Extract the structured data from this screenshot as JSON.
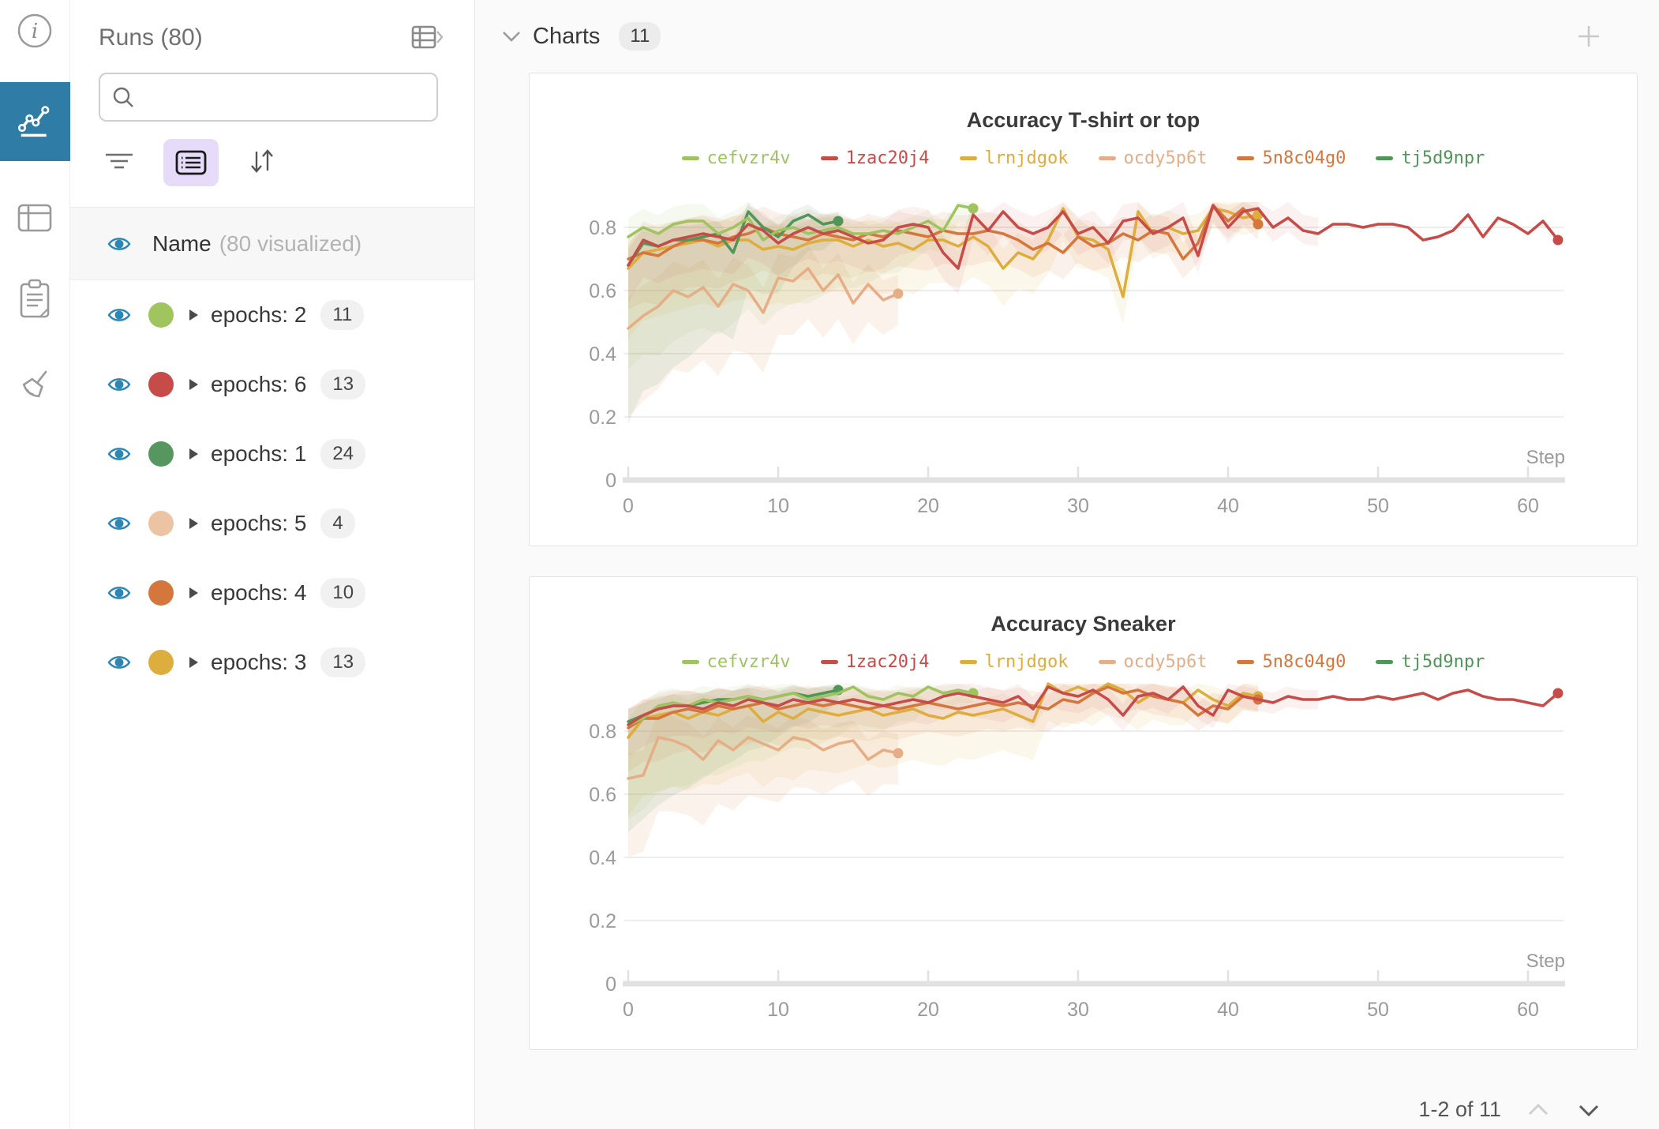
{
  "rail": {
    "items": [
      {
        "name": "info"
      },
      {
        "name": "charts",
        "selected": true
      },
      {
        "name": "table"
      },
      {
        "name": "notes"
      },
      {
        "name": "sweep"
      }
    ],
    "selected_bg": "#2f7ca6"
  },
  "sidebar": {
    "title": "Runs (80)",
    "search": {
      "placeholder": ""
    },
    "visualized_row": {
      "name": "Name",
      "sub": "(80 visualized)"
    },
    "runs": [
      {
        "label": "epochs: 2",
        "count": "11",
        "color": "#a0c45e"
      },
      {
        "label": "epochs: 6",
        "count": "13",
        "color": "#c74b48"
      },
      {
        "label": "epochs: 1",
        "count": "24",
        "color": "#55975e"
      },
      {
        "label": "epochs: 5",
        "count": "4",
        "color": "#ecc4a4"
      },
      {
        "label": "epochs: 4",
        "count": "10",
        "color": "#d5763c"
      },
      {
        "label": "epochs: 3",
        "count": "13",
        "color": "#ddad3d"
      }
    ]
  },
  "main": {
    "header": {
      "title": "Charts",
      "badge": "11"
    },
    "pagination": {
      "label": "1-2 of 11"
    }
  },
  "chart_data": [
    {
      "type": "line",
      "title": "Accuracy T-shirt or top",
      "xlabel": "Step",
      "ylabel": "",
      "xlim": [
        0,
        65
      ],
      "ylim": [
        0,
        1
      ],
      "xticks": [
        0,
        10,
        20,
        30,
        40,
        50,
        60
      ],
      "yticks": [
        0,
        0.2,
        0.4,
        0.6,
        0.8
      ],
      "grid": true,
      "legend_position": "top",
      "band_clamp": 0.88,
      "series": [
        {
          "name": "cefvzr4v",
          "color": "#9fc45f",
          "z": 5,
          "band": {
            "lo0": 0.42,
            "lo1": 0.04,
            "hi0": 0.06,
            "hi1": 0.03,
            "op": 0.1
          },
          "y": [
            0.77,
            0.8,
            0.78,
            0.81,
            0.82,
            0.82,
            0.78,
            0.8,
            0.83,
            0.76,
            0.79,
            0.8,
            0.78,
            0.79,
            0.8,
            0.78,
            0.78,
            0.79,
            0.78,
            0.8,
            0.82,
            0.79,
            0.87,
            0.86
          ]
        },
        {
          "name": "1zac20j4",
          "color": "#c74b48",
          "z": 6,
          "band": {
            "lo0": 0.12,
            "lo1": 0.04,
            "hi0": 0.06,
            "hi1": 0.05,
            "op": 0.08,
            "end": 46
          },
          "y": [
            0.68,
            0.76,
            0.74,
            0.76,
            0.77,
            0.78,
            0.77,
            0.76,
            0.81,
            0.79,
            0.75,
            0.78,
            0.8,
            0.78,
            0.79,
            0.77,
            0.75,
            0.76,
            0.8,
            0.81,
            0.8,
            0.72,
            0.67,
            0.84,
            0.79,
            0.85,
            0.8,
            0.78,
            0.8,
            0.85,
            0.78,
            0.8,
            0.75,
            0.82,
            0.83,
            0.78,
            0.8,
            0.83,
            0.71,
            0.87,
            0.8,
            0.85,
            0.86,
            0.8,
            0.83,
            0.79,
            0.78,
            0.81,
            0.81,
            0.8,
            0.81,
            0.81,
            0.8,
            0.76,
            0.77,
            0.79,
            0.84,
            0.77,
            0.83,
            0.81,
            0.78,
            0.82,
            0.76
          ]
        },
        {
          "name": "lrnjdgok",
          "color": "#ddad3d",
          "z": 2,
          "band": {
            "lo0": 0.22,
            "lo1": 0.05,
            "hi0": 0.08,
            "hi1": 0.05,
            "op": 0.1
          },
          "y": [
            0.67,
            0.72,
            0.73,
            0.74,
            0.75,
            0.76,
            0.74,
            0.76,
            0.76,
            0.73,
            0.74,
            0.73,
            0.75,
            0.76,
            0.76,
            0.74,
            0.76,
            0.74,
            0.75,
            0.73,
            0.76,
            0.76,
            0.74,
            0.77,
            0.74,
            0.67,
            0.72,
            0.7,
            0.76,
            0.86,
            0.77,
            0.76,
            0.73,
            0.58,
            0.85,
            0.78,
            0.8,
            0.78,
            0.79,
            0.86,
            0.85,
            0.83,
            0.84
          ]
        },
        {
          "name": "ocdy5p6t",
          "color": "#e6ae87",
          "z": 1,
          "band": {
            "lo0": 0.28,
            "lo1": 0.1,
            "hi0": 0.1,
            "hi1": 0.06,
            "op": 0.16
          },
          "y": [
            0.48,
            0.52,
            0.55,
            0.6,
            0.58,
            0.61,
            0.55,
            0.62,
            0.6,
            0.53,
            0.64,
            0.63,
            0.67,
            0.6,
            0.65,
            0.56,
            0.62,
            0.57,
            0.59
          ]
        },
        {
          "name": "5n8c04g0",
          "color": "#d5763c",
          "z": 3,
          "band": {
            "lo0": 0.16,
            "lo1": 0.05,
            "hi0": 0.07,
            "hi1": 0.05,
            "op": 0.1
          },
          "y": [
            0.7,
            0.72,
            0.71,
            0.74,
            0.76,
            0.76,
            0.75,
            0.77,
            0.78,
            0.8,
            0.78,
            0.77,
            0.76,
            0.78,
            0.77,
            0.76,
            0.78,
            0.77,
            0.79,
            0.78,
            0.77,
            0.79,
            0.78,
            0.78,
            0.79,
            0.78,
            0.76,
            0.73,
            0.75,
            0.72,
            0.77,
            0.74,
            0.75,
            0.78,
            0.76,
            0.79,
            0.78,
            0.7,
            0.75,
            0.87,
            0.82,
            0.86,
            0.81
          ]
        },
        {
          "name": "tj5d9npr",
          "color": "#4f9658",
          "z": 4,
          "band": {
            "lo0": 0.5,
            "lo1": 0.05,
            "hi0": 0.05,
            "hi1": 0.03,
            "op": 0.1
          },
          "y": [
            0.68,
            0.75,
            0.74,
            0.76,
            0.76,
            0.77,
            0.78,
            0.72,
            0.85,
            0.8,
            0.77,
            0.82,
            0.84,
            0.81,
            0.82
          ]
        }
      ]
    },
    {
      "type": "line",
      "title": "Accuracy Sneaker",
      "xlabel": "Step",
      "ylabel": "",
      "xlim": [
        0,
        65
      ],
      "ylim": [
        0,
        1
      ],
      "xticks": [
        0,
        10,
        20,
        30,
        40,
        50,
        60
      ],
      "yticks": [
        0,
        0.2,
        0.4,
        0.6,
        0.8
      ],
      "grid": true,
      "legend_position": "top",
      "band_clamp": 0.95,
      "series": [
        {
          "name": "cefvzr4v",
          "color": "#9fc45f",
          "z": 5,
          "band": {
            "lo0": 0.3,
            "lo1": 0.03,
            "hi0": 0.05,
            "hi1": 0.02,
            "op": 0.1
          },
          "y": [
            0.82,
            0.84,
            0.88,
            0.89,
            0.88,
            0.9,
            0.89,
            0.9,
            0.91,
            0.9,
            0.91,
            0.92,
            0.9,
            0.91,
            0.92,
            0.94,
            0.91,
            0.9,
            0.92,
            0.91,
            0.94,
            0.92,
            0.93,
            0.92
          ]
        },
        {
          "name": "1zac20j4",
          "color": "#c74b48",
          "z": 6,
          "band": {
            "lo0": 0.1,
            "lo1": 0.03,
            "hi0": 0.05,
            "hi1": 0.03,
            "op": 0.08,
            "end": 46
          },
          "y": [
            0.82,
            0.85,
            0.87,
            0.88,
            0.88,
            0.87,
            0.89,
            0.88,
            0.9,
            0.89,
            0.88,
            0.9,
            0.89,
            0.9,
            0.89,
            0.9,
            0.89,
            0.88,
            0.89,
            0.9,
            0.89,
            0.91,
            0.92,
            0.91,
            0.9,
            0.89,
            0.91,
            0.87,
            0.94,
            0.92,
            0.91,
            0.93,
            0.9,
            0.85,
            0.91,
            0.92,
            0.9,
            0.94,
            0.88,
            0.85,
            0.93,
            0.91,
            0.9,
            0.89,
            0.91,
            0.9,
            0.9,
            0.91,
            0.9,
            0.9,
            0.91,
            0.9,
            0.91,
            0.92,
            0.9,
            0.92,
            0.93,
            0.91,
            0.9,
            0.9,
            0.89,
            0.88,
            0.92
          ]
        },
        {
          "name": "lrnjdgok",
          "color": "#ddad3d",
          "z": 2,
          "band": {
            "lo0": 0.25,
            "lo1": 0.05,
            "hi0": 0.06,
            "hi1": 0.04,
            "op": 0.1
          },
          "y": [
            0.78,
            0.84,
            0.85,
            0.86,
            0.84,
            0.86,
            0.85,
            0.87,
            0.88,
            0.83,
            0.86,
            0.84,
            0.87,
            0.86,
            0.85,
            0.86,
            0.87,
            0.85,
            0.86,
            0.87,
            0.85,
            0.84,
            0.86,
            0.85,
            0.86,
            0.87,
            0.85,
            0.83,
            0.95,
            0.92,
            0.94,
            0.92,
            0.95,
            0.93,
            0.89,
            0.92,
            0.9,
            0.89,
            0.93,
            0.9,
            0.88,
            0.92,
            0.91
          ]
        },
        {
          "name": "ocdy5p6t",
          "color": "#e6ae87",
          "z": 1,
          "band": {
            "lo0": 0.25,
            "lo1": 0.1,
            "hi0": 0.08,
            "hi1": 0.06,
            "op": 0.16
          },
          "y": [
            0.65,
            0.66,
            0.78,
            0.77,
            0.75,
            0.71,
            0.77,
            0.74,
            0.78,
            0.76,
            0.74,
            0.78,
            0.77,
            0.74,
            0.76,
            0.77,
            0.71,
            0.74,
            0.73
          ]
        },
        {
          "name": "5n8c04g0",
          "color": "#d5763c",
          "z": 3,
          "band": {
            "lo0": 0.14,
            "lo1": 0.04,
            "hi0": 0.06,
            "hi1": 0.04,
            "op": 0.1
          },
          "y": [
            0.81,
            0.84,
            0.84,
            0.86,
            0.87,
            0.86,
            0.88,
            0.87,
            0.88,
            0.89,
            0.87,
            0.88,
            0.89,
            0.88,
            0.89,
            0.88,
            0.87,
            0.88,
            0.87,
            0.88,
            0.89,
            0.88,
            0.87,
            0.88,
            0.89,
            0.88,
            0.89,
            0.88,
            0.87,
            0.9,
            0.89,
            0.92,
            0.94,
            0.92,
            0.93,
            0.91,
            0.9,
            0.89,
            0.85,
            0.88,
            0.87,
            0.91,
            0.9
          ]
        },
        {
          "name": "tj5d9npr",
          "color": "#4f9658",
          "z": 4,
          "band": {
            "lo0": 0.35,
            "lo1": 0.04,
            "hi0": 0.04,
            "hi1": 0.02,
            "op": 0.1
          },
          "y": [
            0.83,
            0.85,
            0.87,
            0.88,
            0.88,
            0.89,
            0.9,
            0.9,
            0.91,
            0.9,
            0.91,
            0.92,
            0.91,
            0.92,
            0.93
          ]
        }
      ]
    }
  ]
}
